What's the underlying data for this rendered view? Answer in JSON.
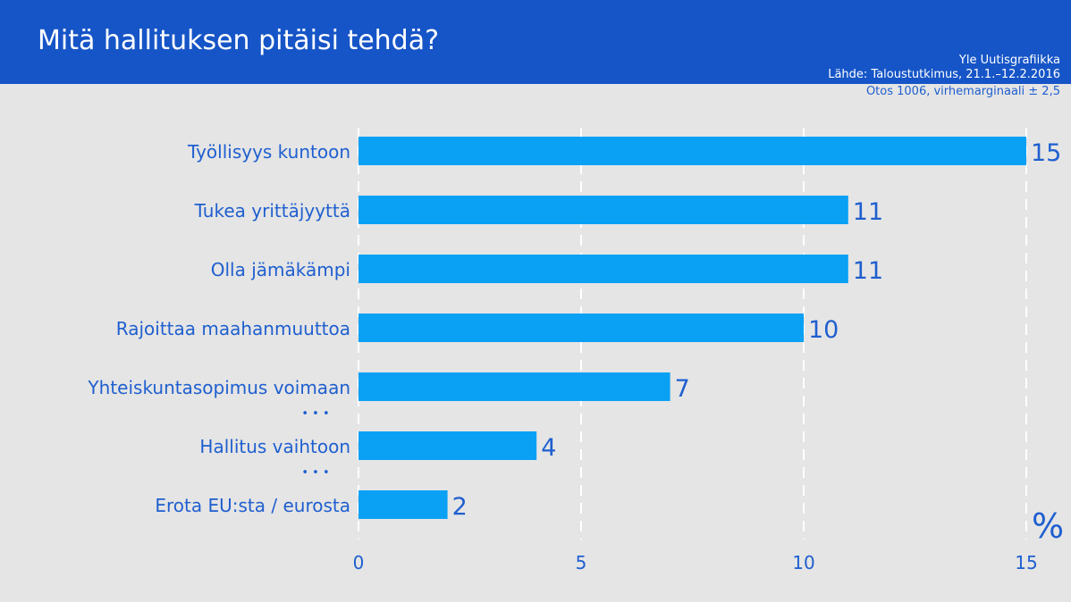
{
  "header": {
    "title": "Mitä hallituksen pitäisi tehdä?",
    "credit": "Yle Uutisgrafiikka",
    "source": "Lähde: Taloustutkimus, 21.1.–12.2.2016",
    "sample": "Otos 1006, virhemarginaali ± 2,5"
  },
  "colors": {
    "header_bg": "#1655c7",
    "bar": "#0aa1f5",
    "text": "#1f5fcf",
    "background": "#e5e5e5"
  },
  "chart_data": {
    "type": "bar",
    "orientation": "horizontal",
    "categories": [
      "Työllisyys kuntoon",
      "Tukea yrittäjyyttä",
      "Olla jämäkämpi",
      "Rajoittaa maahanmuuttoa",
      "Yhteiskuntasopimus voimaan",
      "Hallitus vaihtoon",
      "Erota EU:sta / eurosta"
    ],
    "values": [
      15,
      11,
      11,
      10,
      7,
      4,
      2
    ],
    "value_labels": [
      "15",
      "11",
      "11",
      "10",
      "7",
      "4",
      "2"
    ],
    "xlim": [
      0,
      15
    ],
    "xticks": [
      0,
      5,
      10,
      15
    ],
    "xtick_labels": [
      "0",
      "5",
      "10",
      "15"
    ],
    "unit": "%",
    "gap_markers": [
      "• • •",
      "• • •"
    ],
    "grid": "vertical dashed"
  }
}
